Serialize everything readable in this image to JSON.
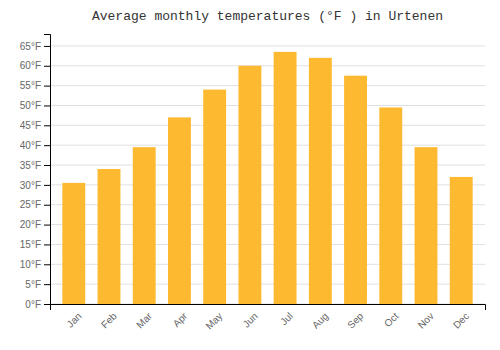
{
  "chart_data": {
    "type": "bar",
    "title": "Average monthly temperatures (°F ) in Urtenen",
    "categories": [
      "Jan",
      "Feb",
      "Mar",
      "Apr",
      "May",
      "Jun",
      "Jul",
      "Aug",
      "Sep",
      "Oct",
      "Nov",
      "Dec"
    ],
    "values": [
      30.5,
      34.0,
      39.5,
      47.0,
      54.0,
      60.0,
      63.5,
      62.0,
      57.5,
      49.5,
      39.5,
      32.0
    ],
    "color": "#FDB930",
    "ylim": [
      0,
      68
    ],
    "yticks": [
      {
        "value": 0,
        "label": "0°F"
      },
      {
        "value": 5,
        "label": "5°F"
      },
      {
        "value": 10,
        "label": "10°F"
      },
      {
        "value": 15,
        "label": "15°F"
      },
      {
        "value": 20,
        "label": "20°F"
      },
      {
        "value": 25,
        "label": "25°F"
      },
      {
        "value": 30,
        "label": "30°F"
      },
      {
        "value": 35,
        "label": "35°F"
      },
      {
        "value": 40,
        "label": "40°F"
      },
      {
        "value": 45,
        "label": "45°F"
      },
      {
        "value": 50,
        "label": "50°F"
      },
      {
        "value": 55,
        "label": "55°F"
      },
      {
        "value": 60,
        "label": "60°F"
      },
      {
        "value": 65,
        "label": "65°F"
      }
    ],
    "grid": true
  }
}
